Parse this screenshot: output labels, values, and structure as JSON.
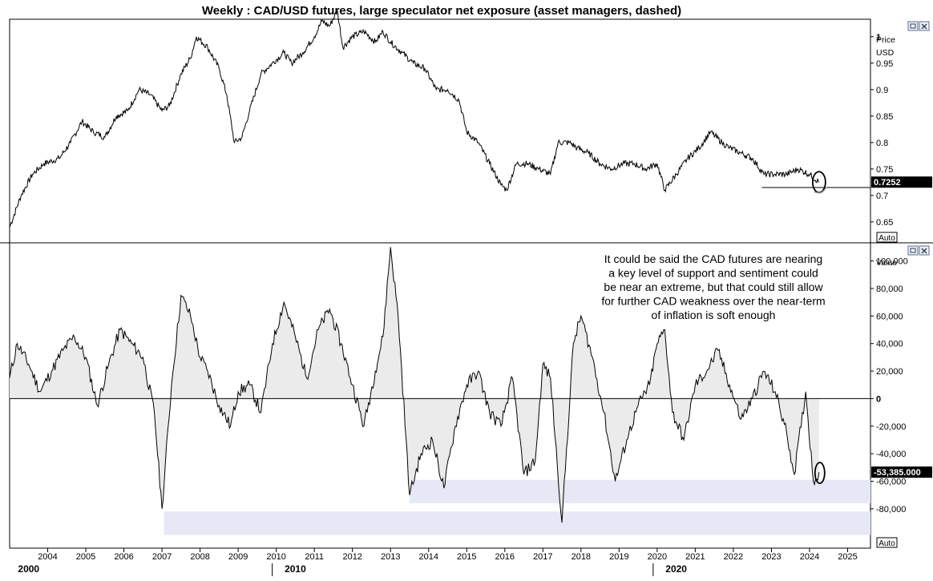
{
  "title": "Weekly : CAD/USD futures, large speculator net exposure (asset managers, dashed)",
  "chart_data": [
    {
      "type": "line",
      "panel": "price",
      "unit_label_1": "Price",
      "unit_label_2": "USD",
      "yticks": [
        "1",
        "0.95",
        "0.9",
        "0.85",
        "0.8",
        "0.75",
        "0.7",
        "0.65"
      ],
      "ylim": [
        0.615,
        1.03
      ],
      "last_value_label": "0.7252",
      "last_value": 0.7252,
      "auto_label": "Auto",
      "support_level": 0.715,
      "series": [
        {
          "x": [
            2003.0,
            2003.3,
            2003.6,
            2003.9,
            2004.3,
            2004.6,
            2004.9,
            2005.2,
            2005.5,
            2005.8,
            2006.1,
            2006.4,
            2006.7,
            2007.0,
            2007.2,
            2007.5,
            2007.75,
            2007.9,
            2008.2,
            2008.5,
            2008.7,
            2008.9,
            2009.1,
            2009.3,
            2009.6,
            2009.9,
            2010.2,
            2010.4,
            2010.7,
            2011.0,
            2011.2,
            2011.4,
            2011.6,
            2011.75,
            2012.0,
            2012.3,
            2012.6,
            2012.8,
            2013.0,
            2013.3,
            2013.6,
            2013.9,
            2014.2,
            2014.5,
            2014.8,
            2015.0,
            2015.3,
            2015.6,
            2015.9,
            2016.05,
            2016.3,
            2016.6,
            2016.9,
            2017.2,
            2017.4,
            2017.7,
            2017.9,
            2018.2,
            2018.5,
            2018.8,
            2019.1,
            2019.4,
            2019.7,
            2020.0,
            2020.2,
            2020.5,
            2020.8,
            2021.1,
            2021.4,
            2021.7,
            2021.9,
            2022.2,
            2022.5,
            2022.8,
            2023.1,
            2023.4,
            2023.7,
            2024.0,
            2024.25
          ],
          "values": [
            0.64,
            0.7,
            0.74,
            0.76,
            0.77,
            0.8,
            0.84,
            0.82,
            0.81,
            0.85,
            0.86,
            0.9,
            0.89,
            0.86,
            0.87,
            0.93,
            0.96,
            1.0,
            0.98,
            0.94,
            0.89,
            0.8,
            0.81,
            0.86,
            0.93,
            0.95,
            0.97,
            0.95,
            0.97,
            1.0,
            1.03,
            1.02,
            1.05,
            0.98,
            1.0,
            1.01,
            0.99,
            1.01,
            0.99,
            0.97,
            0.95,
            0.94,
            0.9,
            0.9,
            0.88,
            0.82,
            0.8,
            0.76,
            0.72,
            0.71,
            0.76,
            0.76,
            0.75,
            0.74,
            0.8,
            0.8,
            0.79,
            0.78,
            0.76,
            0.75,
            0.76,
            0.76,
            0.75,
            0.76,
            0.71,
            0.74,
            0.77,
            0.79,
            0.82,
            0.8,
            0.79,
            0.78,
            0.77,
            0.74,
            0.74,
            0.74,
            0.75,
            0.74,
            0.725
          ]
        }
      ]
    },
    {
      "type": "area",
      "panel": "net-exposure",
      "unit_label": "Value",
      "yticks": [
        "100,000",
        "80,000",
        "60,000",
        "40,000",
        "20,000",
        "0",
        "-20,000",
        "-40,000",
        "-60,000",
        "-80,000"
      ],
      "ylim": [
        -108000,
        112000
      ],
      "last_value_label": "-53,385.000",
      "last_value": -53385,
      "auto_label": "Auto",
      "series": [
        {
          "x": [
            2003.0,
            2003.2,
            2003.5,
            2003.8,
            2004.1,
            2004.4,
            2004.7,
            2005.0,
            2005.3,
            2005.6,
            2005.9,
            2006.2,
            2006.5,
            2006.8,
            2007.0,
            2007.25,
            2007.5,
            2007.75,
            2008.0,
            2008.2,
            2008.5,
            2008.8,
            2009.0,
            2009.3,
            2009.6,
            2009.9,
            2010.2,
            2010.5,
            2010.8,
            2011.1,
            2011.4,
            2011.7,
            2012.0,
            2012.3,
            2012.6,
            2012.8,
            2013.0,
            2013.2,
            2013.5,
            2013.8,
            2014.1,
            2014.4,
            2014.7,
            2015.0,
            2015.3,
            2015.6,
            2015.9,
            2016.2,
            2016.5,
            2016.8,
            2017.0,
            2017.2,
            2017.5,
            2017.8,
            2018.0,
            2018.3,
            2018.6,
            2018.9,
            2019.2,
            2019.5,
            2019.8,
            2020.0,
            2020.2,
            2020.4,
            2020.7,
            2021.0,
            2021.3,
            2021.6,
            2021.9,
            2022.2,
            2022.5,
            2022.8,
            2023.1,
            2023.4,
            2023.6,
            2023.9,
            2024.1,
            2024.25
          ],
          "values": [
            15000,
            40000,
            25000,
            5000,
            20000,
            35000,
            45000,
            30000,
            -5000,
            25000,
            50000,
            40000,
            30000,
            -10000,
            -80000,
            10000,
            75000,
            60000,
            30000,
            20000,
            -5000,
            -20000,
            5000,
            10000,
            -10000,
            40000,
            70000,
            45000,
            15000,
            50000,
            65000,
            40000,
            10000,
            -20000,
            20000,
            45000,
            110000,
            60000,
            -70000,
            -40000,
            -30000,
            -65000,
            -20000,
            10000,
            20000,
            -10000,
            -20000,
            15000,
            -55000,
            -45000,
            25000,
            15000,
            -90000,
            40000,
            60000,
            30000,
            -10000,
            -60000,
            -30000,
            -5000,
            10000,
            40000,
            50000,
            -10000,
            -30000,
            10000,
            20000,
            35000,
            10000,
            -15000,
            0,
            20000,
            5000,
            -25000,
            -55000,
            5000,
            -60000,
            -53385
          ]
        }
      ],
      "highlight_bands": [
        {
          "x_start": 2013.5,
          "x_end": 2025.6,
          "y_top": -59000,
          "y_bottom": -76000
        },
        {
          "x_start": 2007.05,
          "x_end": 2025.6,
          "y_top": -82000,
          "y_bottom": -99000
        }
      ]
    }
  ],
  "annotation_lines": [
    "It could be said the CAD futures are nearing",
    "a key level of support and sentiment could",
    "be near an extreme, but that could still allow",
    "for further CAD weakness over the near-term",
    "of inflation is soft enough"
  ],
  "x_axis": {
    "year_labels": [
      "2004",
      "2005",
      "2006",
      "2007",
      "2008",
      "2009",
      "2010",
      "2011",
      "2012",
      "2013",
      "2014",
      "2015",
      "2016",
      "2017",
      "2018",
      "2019",
      "2020",
      "2021",
      "2022",
      "2023",
      "2024",
      "2025"
    ],
    "year_values": [
      2004,
      2005,
      2006,
      2007,
      2008,
      2009,
      2010,
      2011,
      2012,
      2013,
      2014,
      2015,
      2016,
      2017,
      2018,
      2019,
      2020,
      2021,
      2022,
      2023,
      2024,
      2025
    ],
    "decade_labels": [
      "2000",
      "2010",
      "2020"
    ],
    "decade_values": [
      2003.5,
      2010.5,
      2020.5
    ],
    "decade_separators": [
      2010.0,
      2020.0
    ]
  },
  "colors": {
    "line": "#000000",
    "fill": "#ebebeb",
    "band": "#e6e8f5",
    "badge": "#000000",
    "button_border": "#5a6f8f"
  },
  "icons": [
    "restore-icon",
    "close-icon"
  ]
}
